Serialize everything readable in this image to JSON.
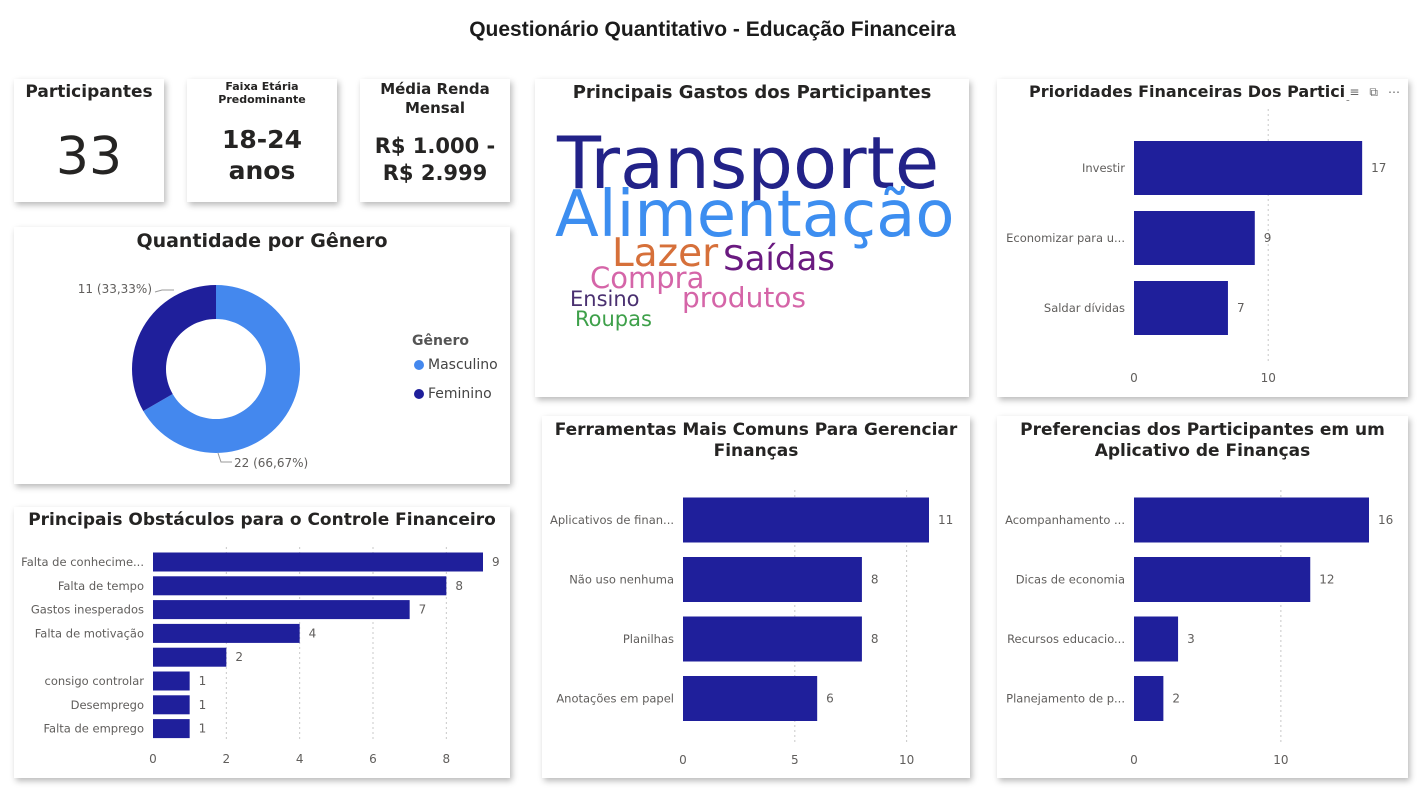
{
  "title": "Questionário Quantitativo - Educação Financeira",
  "kpis": {
    "participants": {
      "label": "Participantes",
      "value": "33"
    },
    "age": {
      "label_1": "Faixa Etária",
      "label_2": "Predominante",
      "value_1": "18-24",
      "value_2": "anos"
    },
    "income": {
      "label_1": "Média Renda",
      "label_2": "Mensal",
      "value_1": "R$ 1.000 -",
      "value_2": "R$ 2.999"
    }
  },
  "colors": {
    "bar": "#1f1f9b",
    "masculino": "#4488ee",
    "feminino": "#1f1f9b",
    "grid": "#c8c8c8"
  },
  "chart_data": [
    {
      "type": "pie",
      "variant": "donut",
      "title": "Quantidade por Gênero",
      "legend_title": "Gênero",
      "legend_position": "right",
      "series": [
        {
          "name": "Masculino",
          "value": 22,
          "label": "22 (66,67%)"
        },
        {
          "name": "Feminino",
          "value": 11,
          "label": "11 (33,33%)"
        }
      ]
    },
    {
      "type": "wordcloud",
      "title": "Principais Gastos dos Participantes",
      "words": [
        "Transporte",
        "Alimentação",
        "Lazer",
        "Saídas",
        "Compra",
        "produtos",
        "Ensino",
        "Roupas"
      ]
    },
    {
      "type": "bar",
      "orientation": "horizontal",
      "title": "Prioridades Financeiras Dos Particip",
      "categories": [
        "Investir",
        "Economizar para u...",
        "Saldar dívidas"
      ],
      "values": [
        17,
        9,
        7
      ],
      "xlim": [
        0,
        19
      ],
      "xticks": [
        0,
        10
      ]
    },
    {
      "type": "bar",
      "orientation": "horizontal",
      "title": "Principais Obstáculos para o Controle Financeiro",
      "categories": [
        "Falta de conhecime...",
        "Falta de tempo",
        "Gastos inesperados",
        "Falta de motivação",
        "",
        "consigo controlar",
        "Desemprego",
        "Falta de emprego"
      ],
      "values": [
        9,
        8,
        7,
        4,
        2,
        1,
        1,
        1
      ],
      "xlim": [
        0,
        9
      ],
      "xticks": [
        0,
        2,
        4,
        6,
        8
      ]
    },
    {
      "type": "bar",
      "orientation": "horizontal",
      "title": "Ferramentas Mais Comuns Para Gerenciar Finanças",
      "title_lines": [
        "Ferramentas Mais Comuns Para Gerenciar",
        "Finanças"
      ],
      "categories": [
        "Aplicativos de finan...",
        "Não uso nenhuma",
        "Planilhas",
        "Anotações em papel"
      ],
      "values": [
        11,
        8,
        8,
        6
      ],
      "xlim": [
        0,
        11
      ],
      "xticks": [
        0,
        5,
        10
      ]
    },
    {
      "type": "bar",
      "orientation": "horizontal",
      "title": "Preferencias dos Participantes em um Aplicativo de Finanças",
      "title_lines": [
        "Preferencias dos Participantes em um",
        "Aplicativo de Finanças"
      ],
      "categories": [
        "Acompanhamento ...",
        "Dicas de economia",
        "Recursos educacio...",
        "Planejamento de p..."
      ],
      "values": [
        16,
        12,
        3,
        2
      ],
      "xlim": [
        0,
        16
      ],
      "xticks": [
        0,
        10
      ]
    }
  ]
}
